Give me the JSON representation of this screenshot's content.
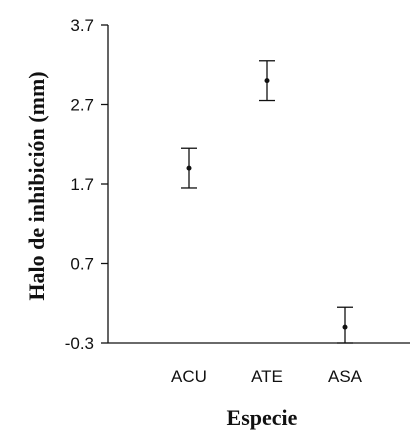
{
  "chart_data": {
    "type": "scatter",
    "title": "",
    "xlabel": "Especie",
    "ylabel": "Halo de inhibición (mm)",
    "categories": [
      "ACU",
      "ATE",
      "ASA"
    ],
    "values": [
      1.9,
      3.0,
      -0.1
    ],
    "error_low": [
      1.65,
      2.75,
      -0.3
    ],
    "error_high": [
      2.15,
      3.25,
      0.15
    ],
    "ylim": [
      -0.3,
      3.7
    ],
    "yticks": [
      -0.3,
      0.7,
      1.7,
      2.7,
      3.7
    ],
    "ytick_labels": [
      "-0.3",
      "0.7",
      "1.7",
      "2.7",
      "3.7"
    ],
    "grid": false,
    "colors": {
      "marks": "#111111",
      "axis": "#111111"
    }
  }
}
